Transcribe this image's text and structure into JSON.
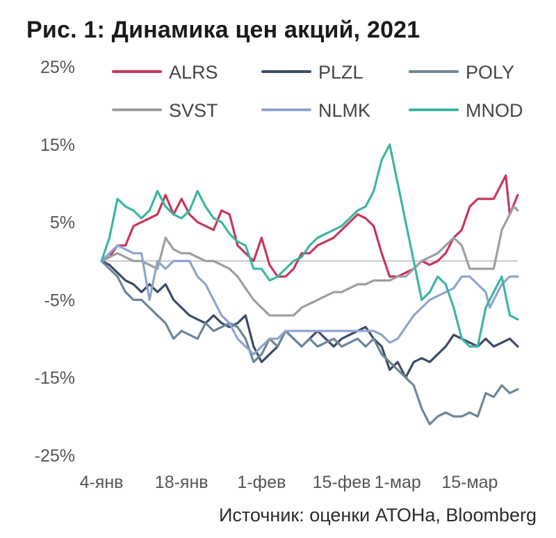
{
  "chart_data": {
    "type": "line",
    "title": "Рис. 1: Динамика цен акций, 2021",
    "source": "Источник: оценки АТОНа, Bloomberg",
    "xlabel": "",
    "ylabel": "",
    "ylim": [
      -25,
      25
    ],
    "yticks": [
      25,
      15,
      5,
      -5,
      -15,
      -25
    ],
    "ytick_labels": [
      "25%",
      "15%",
      "5%",
      "-5%",
      "-15%",
      "-25%"
    ],
    "xlim": [
      0,
      52
    ],
    "xticks": [
      0,
      10,
      20,
      30,
      37,
      46
    ],
    "xtick_labels": [
      "4-янв",
      "18-янв",
      "1-фев",
      "15-фев",
      "1-мар",
      "15-мар"
    ],
    "zero_line": true,
    "grid": false,
    "legend_position": "top",
    "series": [
      {
        "name": "ALRS",
        "color": "#c7365a",
        "points": [
          [
            0,
            0
          ],
          [
            1,
            0.5
          ],
          [
            2,
            2
          ],
          [
            3,
            2
          ],
          [
            4,
            4.5
          ],
          [
            5,
            5
          ],
          [
            6,
            5.5
          ],
          [
            7,
            6
          ],
          [
            8,
            8.5
          ],
          [
            9,
            6
          ],
          [
            10,
            8
          ],
          [
            11,
            6
          ],
          [
            12,
            5
          ],
          [
            13,
            4.5
          ],
          [
            14,
            4
          ],
          [
            15,
            6.5
          ],
          [
            16,
            6
          ],
          [
            17,
            2
          ],
          [
            18,
            1
          ],
          [
            19,
            0
          ],
          [
            20,
            3
          ],
          [
            21,
            -0.5
          ],
          [
            22,
            -2
          ],
          [
            23,
            -2
          ],
          [
            24,
            -1
          ],
          [
            25,
            1
          ],
          [
            26,
            1
          ],
          [
            27,
            2
          ],
          [
            28,
            2.5
          ],
          [
            29,
            3
          ],
          [
            30,
            4
          ],
          [
            31,
            5
          ],
          [
            32,
            6
          ],
          [
            33,
            5.5
          ],
          [
            34,
            4.5
          ],
          [
            35,
            1
          ],
          [
            36,
            -2
          ],
          [
            37,
            -2
          ],
          [
            38,
            -1.5
          ],
          [
            39,
            -1
          ],
          [
            40,
            0
          ],
          [
            41,
            -0.5
          ],
          [
            42,
            0
          ],
          [
            43,
            1
          ],
          [
            44,
            3
          ],
          [
            45,
            4
          ],
          [
            46,
            7
          ],
          [
            47,
            8
          ],
          [
            48,
            8
          ],
          [
            49,
            8
          ],
          [
            50,
            10
          ],
          [
            50.5,
            11
          ],
          [
            51,
            6
          ],
          [
            52,
            8.5
          ]
        ]
      },
      {
        "name": "PLZL",
        "color": "#3b4b66",
        "points": [
          [
            0,
            0
          ],
          [
            1,
            -0.5
          ],
          [
            2,
            -1.5
          ],
          [
            3,
            -2.5
          ],
          [
            4,
            -3
          ],
          [
            5,
            -4
          ],
          [
            6,
            -3
          ],
          [
            7,
            -4
          ],
          [
            8,
            -3
          ],
          [
            9,
            -5
          ],
          [
            10,
            -6
          ],
          [
            11,
            -7
          ],
          [
            12,
            -7.5
          ],
          [
            13,
            -8
          ],
          [
            14,
            -7
          ],
          [
            15,
            -8
          ],
          [
            16,
            -8.5
          ],
          [
            17,
            -8
          ],
          [
            18,
            -7
          ],
          [
            19,
            -11
          ],
          [
            20,
            -13
          ],
          [
            21,
            -12
          ],
          [
            22,
            -11
          ],
          [
            23,
            -9
          ],
          [
            24,
            -10
          ],
          [
            25,
            -11
          ],
          [
            26,
            -10
          ],
          [
            27,
            -9
          ],
          [
            28,
            -10
          ],
          [
            29,
            -11
          ],
          [
            30,
            -10
          ],
          [
            31,
            -9.5
          ],
          [
            32,
            -9
          ],
          [
            33,
            -8.5
          ],
          [
            34,
            -10
          ],
          [
            35,
            -11
          ],
          [
            36,
            -14
          ],
          [
            37,
            -13
          ],
          [
            38,
            -15
          ],
          [
            39,
            -13
          ],
          [
            40,
            -12.5
          ],
          [
            41,
            -13
          ],
          [
            42,
            -12
          ],
          [
            43,
            -11
          ],
          [
            44,
            -9.5
          ],
          [
            45,
            -10
          ],
          [
            46,
            -10.5
          ],
          [
            47,
            -11
          ],
          [
            48,
            -10
          ],
          [
            49,
            -11
          ],
          [
            50,
            -10.5
          ],
          [
            51,
            -10
          ],
          [
            52,
            -11
          ]
        ]
      },
      {
        "name": "POLY",
        "color": "#6e8597",
        "points": [
          [
            0,
            0
          ],
          [
            1,
            -1
          ],
          [
            2,
            -2
          ],
          [
            3,
            -4
          ],
          [
            4,
            -5
          ],
          [
            5,
            -5
          ],
          [
            6,
            -6
          ],
          [
            7,
            -7
          ],
          [
            8,
            -8
          ],
          [
            9,
            -10
          ],
          [
            10,
            -9
          ],
          [
            11,
            -9.5
          ],
          [
            12,
            -10
          ],
          [
            13,
            -8
          ],
          [
            14,
            -9
          ],
          [
            15,
            -8.5
          ],
          [
            16,
            -8
          ],
          [
            17,
            -8.5
          ],
          [
            18,
            -10
          ],
          [
            19,
            -13
          ],
          [
            20,
            -12
          ],
          [
            21,
            -10
          ],
          [
            22,
            -11
          ],
          [
            23,
            -9
          ],
          [
            24,
            -10
          ],
          [
            25,
            -11
          ],
          [
            26,
            -10
          ],
          [
            27,
            -11
          ],
          [
            28,
            -10.5
          ],
          [
            29,
            -10
          ],
          [
            30,
            -11
          ],
          [
            31,
            -10.5
          ],
          [
            32,
            -10
          ],
          [
            33,
            -11
          ],
          [
            34,
            -10
          ],
          [
            35,
            -12
          ],
          [
            36,
            -13
          ],
          [
            37,
            -14
          ],
          [
            38,
            -15
          ],
          [
            39,
            -16
          ],
          [
            40,
            -19
          ],
          [
            41,
            -21
          ],
          [
            42,
            -20
          ],
          [
            43,
            -19.5
          ],
          [
            44,
            -20
          ],
          [
            45,
            -20
          ],
          [
            46,
            -19.5
          ],
          [
            47,
            -20
          ],
          [
            48,
            -17
          ],
          [
            49,
            -17.5
          ],
          [
            50,
            -16
          ],
          [
            51,
            -17
          ],
          [
            52,
            -16.5
          ]
        ]
      },
      {
        "name": "SVST",
        "color": "#9e9e9e",
        "points": [
          [
            0,
            0
          ],
          [
            1,
            0.5
          ],
          [
            2,
            1
          ],
          [
            3,
            0.5
          ],
          [
            4,
            0
          ],
          [
            5,
            0
          ],
          [
            6,
            -0.5
          ],
          [
            7,
            -1
          ],
          [
            8,
            3
          ],
          [
            9,
            1.5
          ],
          [
            10,
            1
          ],
          [
            11,
            1
          ],
          [
            12,
            0.5
          ],
          [
            13,
            0
          ],
          [
            14,
            0
          ],
          [
            15,
            -0.5
          ],
          [
            16,
            -1
          ],
          [
            17,
            -2
          ],
          [
            18,
            -3.5
          ],
          [
            19,
            -5
          ],
          [
            20,
            -6
          ],
          [
            21,
            -7
          ],
          [
            22,
            -7
          ],
          [
            23,
            -7
          ],
          [
            24,
            -7
          ],
          [
            25,
            -6
          ],
          [
            26,
            -5.5
          ],
          [
            27,
            -5
          ],
          [
            28,
            -4.5
          ],
          [
            29,
            -4
          ],
          [
            30,
            -4
          ],
          [
            31,
            -3.5
          ],
          [
            32,
            -3
          ],
          [
            33,
            -3
          ],
          [
            34,
            -2.5
          ],
          [
            35,
            -2.5
          ],
          [
            36,
            -2.5
          ],
          [
            37,
            -2
          ],
          [
            38,
            -2
          ],
          [
            39,
            -1
          ],
          [
            40,
            0
          ],
          [
            41,
            0.5
          ],
          [
            42,
            1
          ],
          [
            43,
            2
          ],
          [
            44,
            3
          ],
          [
            45,
            2
          ],
          [
            46,
            -1
          ],
          [
            47,
            -1
          ],
          [
            48,
            -1
          ],
          [
            49,
            -1
          ],
          [
            50,
            4
          ],
          [
            51,
            6
          ],
          [
            51.5,
            7
          ],
          [
            52,
            6.5
          ]
        ]
      },
      {
        "name": "NLMK",
        "color": "#8fa4cf",
        "points": [
          [
            0,
            0
          ],
          [
            1,
            1
          ],
          [
            2,
            2
          ],
          [
            3,
            1.5
          ],
          [
            4,
            1
          ],
          [
            5,
            1
          ],
          [
            6,
            -5
          ],
          [
            7,
            0
          ],
          [
            8,
            -1
          ],
          [
            9,
            0
          ],
          [
            10,
            0
          ],
          [
            11,
            0
          ],
          [
            12,
            -2
          ],
          [
            13,
            -3
          ],
          [
            14,
            -5
          ],
          [
            15,
            -7
          ],
          [
            16,
            -8
          ],
          [
            17,
            -10
          ],
          [
            18,
            -11
          ],
          [
            19,
            -12
          ],
          [
            20,
            -11
          ],
          [
            21,
            -10
          ],
          [
            22,
            -10
          ],
          [
            23,
            -9
          ],
          [
            24,
            -9
          ],
          [
            25,
            -9
          ],
          [
            26,
            -9
          ],
          [
            27,
            -9
          ],
          [
            28,
            -9
          ],
          [
            29,
            -9
          ],
          [
            30,
            -9
          ],
          [
            31,
            -9
          ],
          [
            32,
            -9
          ],
          [
            33,
            -9
          ],
          [
            34,
            -9
          ],
          [
            35,
            -9.5
          ],
          [
            36,
            -10.5
          ],
          [
            37,
            -10
          ],
          [
            38,
            -8.5
          ],
          [
            39,
            -7
          ],
          [
            40,
            -6
          ],
          [
            41,
            -5
          ],
          [
            42,
            -4.5
          ],
          [
            43,
            -4
          ],
          [
            44,
            -3.5
          ],
          [
            45,
            -2
          ],
          [
            46,
            -2
          ],
          [
            47,
            -3
          ],
          [
            48,
            -4
          ],
          [
            48.5,
            -6
          ],
          [
            49,
            -5
          ],
          [
            50,
            -3
          ],
          [
            51,
            -2
          ],
          [
            52,
            -2
          ]
        ]
      },
      {
        "name": "MNOD",
        "color": "#3cb6a0",
        "points": [
          [
            0,
            0
          ],
          [
            1,
            3
          ],
          [
            2,
            8
          ],
          [
            3,
            7
          ],
          [
            4,
            6.5
          ],
          [
            5,
            5.5
          ],
          [
            6,
            6.5
          ],
          [
            7,
            9
          ],
          [
            8,
            7
          ],
          [
            9,
            6
          ],
          [
            10,
            5.5
          ],
          [
            11,
            6.5
          ],
          [
            12,
            9
          ],
          [
            13,
            7
          ],
          [
            14,
            5.5
          ],
          [
            15,
            5
          ],
          [
            16,
            3.5
          ],
          [
            17,
            2.5
          ],
          [
            18,
            2
          ],
          [
            19,
            -1
          ],
          [
            20,
            -1
          ],
          [
            21,
            -2.5
          ],
          [
            22,
            -2
          ],
          [
            23,
            -1
          ],
          [
            24,
            0
          ],
          [
            25,
            0.5
          ],
          [
            26,
            2
          ],
          [
            27,
            3
          ],
          [
            28,
            3.5
          ],
          [
            29,
            4
          ],
          [
            30,
            4.5
          ],
          [
            31,
            5.5
          ],
          [
            32,
            6.5
          ],
          [
            33,
            7
          ],
          [
            34,
            9
          ],
          [
            35,
            13
          ],
          [
            36,
            15
          ],
          [
            37,
            10
          ],
          [
            38,
            5
          ],
          [
            39,
            0
          ],
          [
            40,
            -5
          ],
          [
            41,
            -4
          ],
          [
            42,
            -2
          ],
          [
            43,
            -3
          ],
          [
            44,
            -6
          ],
          [
            45,
            -10
          ],
          [
            46,
            -11
          ],
          [
            47,
            -11
          ],
          [
            48,
            -6
          ],
          [
            49,
            -4
          ],
          [
            50,
            -2
          ],
          [
            51,
            -7
          ],
          [
            52,
            -7.5
          ]
        ]
      }
    ]
  }
}
